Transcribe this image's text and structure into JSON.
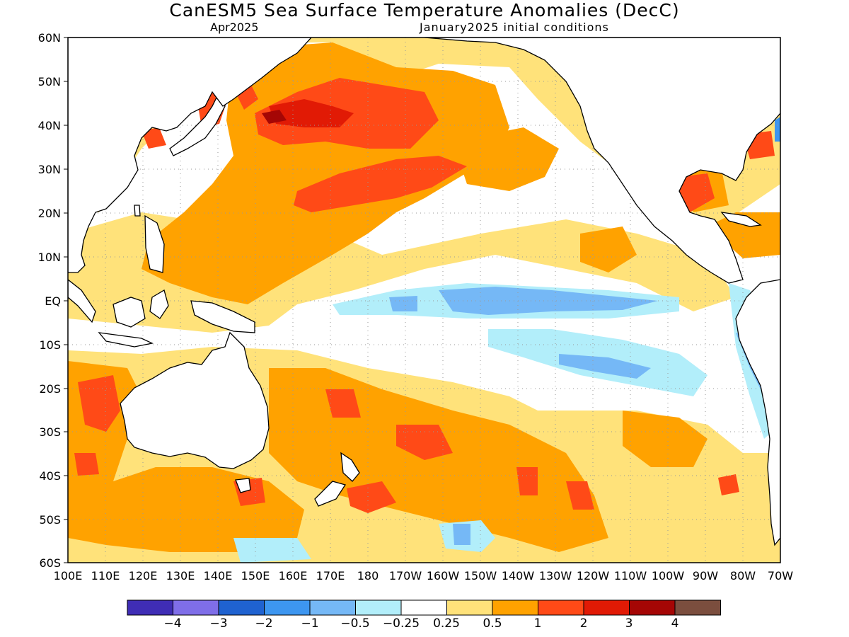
{
  "title": "CanESM5 Sea Surface Temperature Anomalies (DecC)",
  "forecast_month": "Apr2025",
  "initial_conditions": "January2025 initial conditions",
  "y_axis_labels": [
    "60N",
    "50N",
    "40N",
    "30N",
    "20N",
    "10N",
    "EQ",
    "10S",
    "20S",
    "30S",
    "40S",
    "50S",
    "60S"
  ],
  "x_axis_labels": [
    "100E",
    "110E",
    "120E",
    "130E",
    "140E",
    "150E",
    "160E",
    "170E",
    "180",
    "170W",
    "160W",
    "150W",
    "140W",
    "130W",
    "120W",
    "110W",
    "100W",
    "90W",
    "80W",
    "70W"
  ],
  "colorbar": {
    "colors": [
      "#3f2db5",
      "#7f6ee8",
      "#1f62d0",
      "#3d96f0",
      "#75b8f6",
      "#b2eefa",
      "#ffffff",
      "#ffe27a",
      "#ffa200",
      "#ff4a17",
      "#e11a05",
      "#a50605",
      "#7b4e3e"
    ],
    "labels": [
      "−4",
      "−3",
      "−2",
      "−1",
      "−0.5",
      "−0.25",
      "0.25",
      "0.5",
      "1",
      "2",
      "3",
      "4"
    ]
  },
  "map_data": {
    "lon_range": [
      100,
      290
    ],
    "lat_range": [
      -60,
      60
    ],
    "land_color": "#ffffff",
    "coastline_color": "#000000"
  }
}
